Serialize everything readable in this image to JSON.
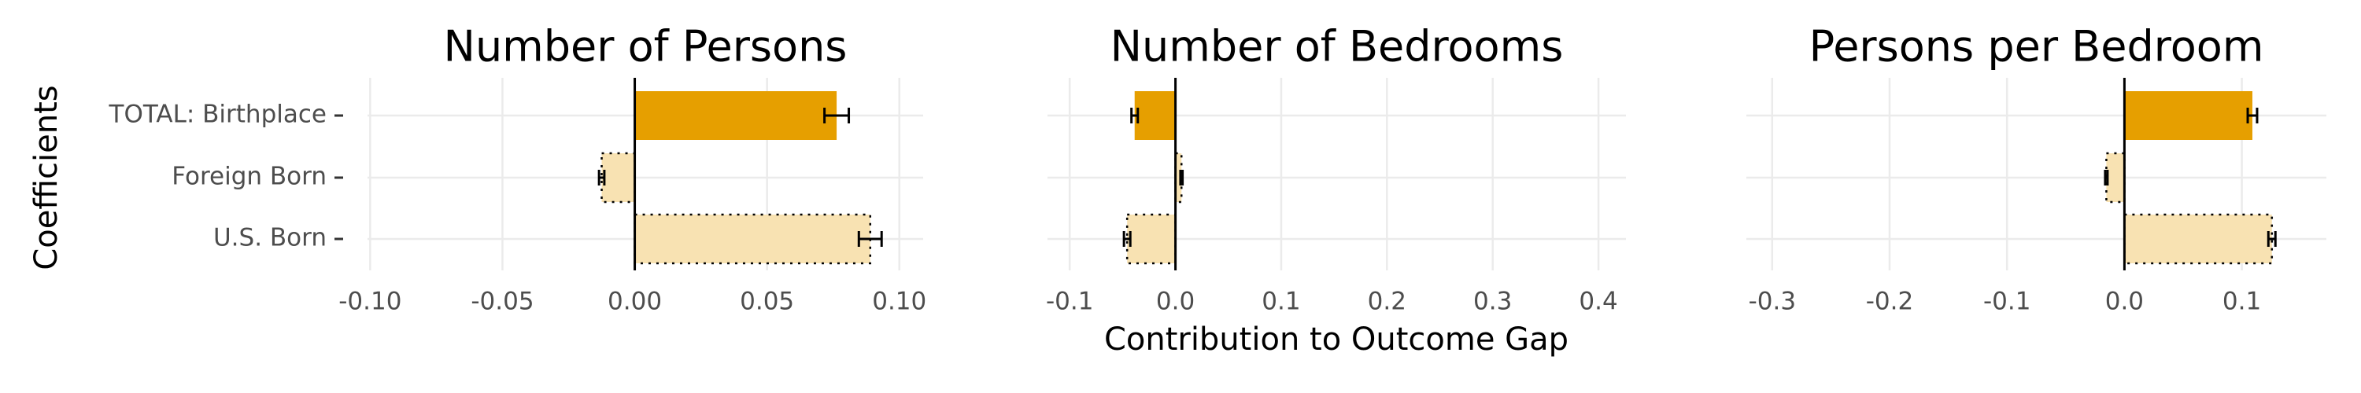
{
  "chart_data": [
    {
      "type": "barh",
      "title": "Number of Persons",
      "ylabel": "Coefficients",
      "categories": [
        "TOTAL: Birthplace",
        "Foreign Born",
        "U.S. Born"
      ],
      "values": [
        0.0763,
        -0.0125,
        0.089
      ],
      "errors": [
        0.0046,
        0.001,
        0.0043
      ],
      "fills": [
        "#E69F00",
        "#F8E2B2",
        "#F8E2B2"
      ],
      "dotted": [
        false,
        true,
        true
      ],
      "xlim": [
        -0.101,
        0.109
      ],
      "xticks": [
        {
          "value": -0.1,
          "label": "-0.10"
        },
        -0.05,
        {
          "value": 0,
          "label": "0.00"
        },
        0.05,
        {
          "value": 0.1,
          "label": "0.10"
        }
      ],
      "grid": true
    },
    {
      "type": "barh",
      "title": "Number of Bedrooms",
      "xlabel": "Contribution to Outcome Gap",
      "values": [
        -0.0386,
        0.0057,
        -0.0457
      ],
      "errors": [
        0.003,
        0.001,
        0.003
      ],
      "fills": [
        "#E69F00",
        "#F8E2B2",
        "#F8E2B2"
      ],
      "dotted": [
        false,
        true,
        true
      ],
      "xlim": [
        -0.121,
        0.426
      ],
      "xticks": [
        -0.1,
        {
          "value": 0,
          "label": "0.0"
        },
        0.1,
        0.2,
        0.3,
        0.4
      ],
      "grid": true
    },
    {
      "type": "barh",
      "title": "Persons per Bedroom",
      "values": [
        0.109,
        -0.0154,
        0.1256
      ],
      "errors": [
        0.004,
        0.001,
        0.003
      ],
      "fills": [
        "#E69F00",
        "#F8E2B2",
        "#F8E2B2"
      ],
      "dotted": [
        false,
        true,
        true
      ],
      "xlim": [
        -0.322,
        0.172
      ],
      "xticks": [
        -0.3,
        -0.2,
        -0.1,
        {
          "value": 0,
          "label": "0.0"
        },
        0.1
      ],
      "grid": true
    }
  ]
}
